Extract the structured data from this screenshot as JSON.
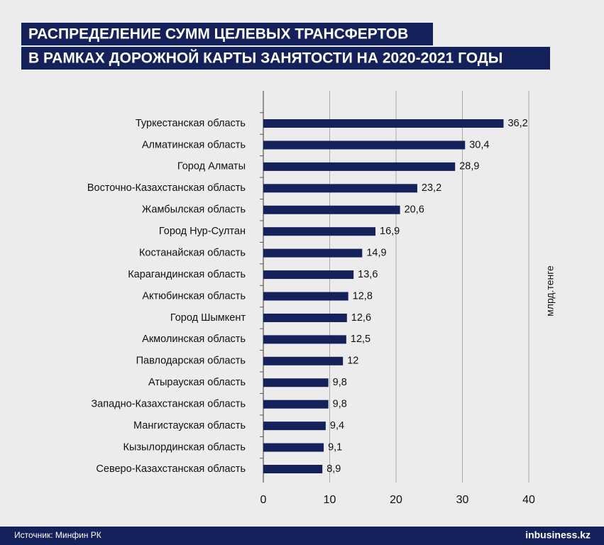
{
  "chart_data": {
    "type": "bar",
    "orientation": "horizontal",
    "title_lines": [
      "РАСПРЕДЕЛЕНИЕ СУММ ЦЕЛЕВЫХ ТРАНСФЕРТОВ",
      "В РАМКАХ ДОРОЖНОЙ КАРТЫ ЗАНЯТОСТИ НА 2020-2021 ГОДЫ"
    ],
    "axis_label": "млрд.тенге",
    "categories": [
      "Туркестанская область",
      "Алматинская область",
      "Город Алматы",
      "Восточно-Казахстанская область",
      "Жамбылская область",
      "Город Нур-Султан",
      "Костанайская область",
      "Карагандинская область",
      "Актюбинская область",
      "Город Шымкент",
      "Акмолинская область",
      "Павлодарская область",
      "Атырауская область",
      "Западно-Казахстанская область",
      "Мангистауская область",
      "Кызылординская область",
      "Северо-Казахстанская область"
    ],
    "values": [
      36.2,
      30.4,
      28.9,
      23.2,
      20.6,
      16.9,
      14.9,
      13.6,
      12.8,
      12.6,
      12.5,
      12,
      9.8,
      9.8,
      9.4,
      9.1,
      8.9
    ],
    "value_labels": [
      "36,2",
      "30,4",
      "28,9",
      "23,2",
      "20,6",
      "16,9",
      "14,9",
      "13,6",
      "12,8",
      "12,6",
      "12,5",
      "12",
      "9,8",
      "9,8",
      "9,4",
      "9,1",
      "8,9"
    ],
    "color": "#14215b",
    "xlim": [
      0,
      40
    ],
    "xticks": [
      0,
      10,
      20,
      30,
      40
    ],
    "grid": true,
    "source": "Источник: Минфин РК",
    "brand": "inbusiness.kz"
  }
}
